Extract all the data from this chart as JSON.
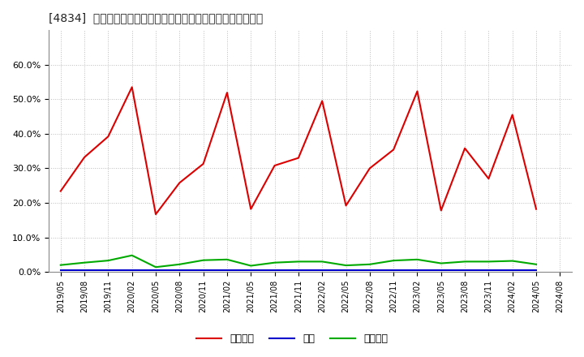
{
  "title": "[4834]  売上債権、在庫、買入債務の総資産に対する比率の推移",
  "background_color": "#ffffff",
  "plot_bg_color": "#ffffff",
  "grid_color": "#bbbbbb",
  "x_labels": [
    "2019/05",
    "2019/08",
    "2019/11",
    "2020/02",
    "2020/05",
    "2020/08",
    "2020/11",
    "2021/02",
    "2021/05",
    "2021/08",
    "2021/11",
    "2022/02",
    "2022/05",
    "2022/08",
    "2022/11",
    "2023/02",
    "2023/05",
    "2023/08",
    "2023/11",
    "2024/02",
    "2024/05",
    "2024/08"
  ],
  "receivables": [
    0.234,
    0.332,
    0.392,
    0.535,
    0.167,
    0.258,
    0.313,
    0.519,
    0.182,
    0.308,
    0.33,
    0.495,
    0.192,
    0.3,
    0.354,
    0.523,
    0.178,
    0.358,
    0.27,
    0.455,
    0.182,
    null
  ],
  "inventory": [
    0.005,
    0.005,
    0.005,
    0.005,
    0.005,
    0.005,
    0.005,
    0.005,
    0.005,
    0.005,
    0.005,
    0.005,
    0.005,
    0.005,
    0.005,
    0.005,
    0.005,
    0.005,
    0.005,
    0.005,
    0.005,
    null
  ],
  "payables": [
    0.02,
    0.027,
    0.033,
    0.048,
    0.014,
    0.022,
    0.034,
    0.036,
    0.018,
    0.027,
    0.03,
    0.03,
    0.019,
    0.022,
    0.033,
    0.036,
    0.025,
    0.03,
    0.03,
    0.032,
    0.022,
    null
  ],
  "receivables_color": "#dd0000",
  "inventory_color": "#0000cc",
  "payables_color": "#00aa00",
  "receivables_label": "売上債権",
  "inventory_label": "在庫",
  "payables_label": "買入債務",
  "ylim": [
    0.0,
    0.7
  ],
  "yticks": [
    0.0,
    0.1,
    0.2,
    0.3,
    0.4,
    0.5,
    0.6
  ]
}
